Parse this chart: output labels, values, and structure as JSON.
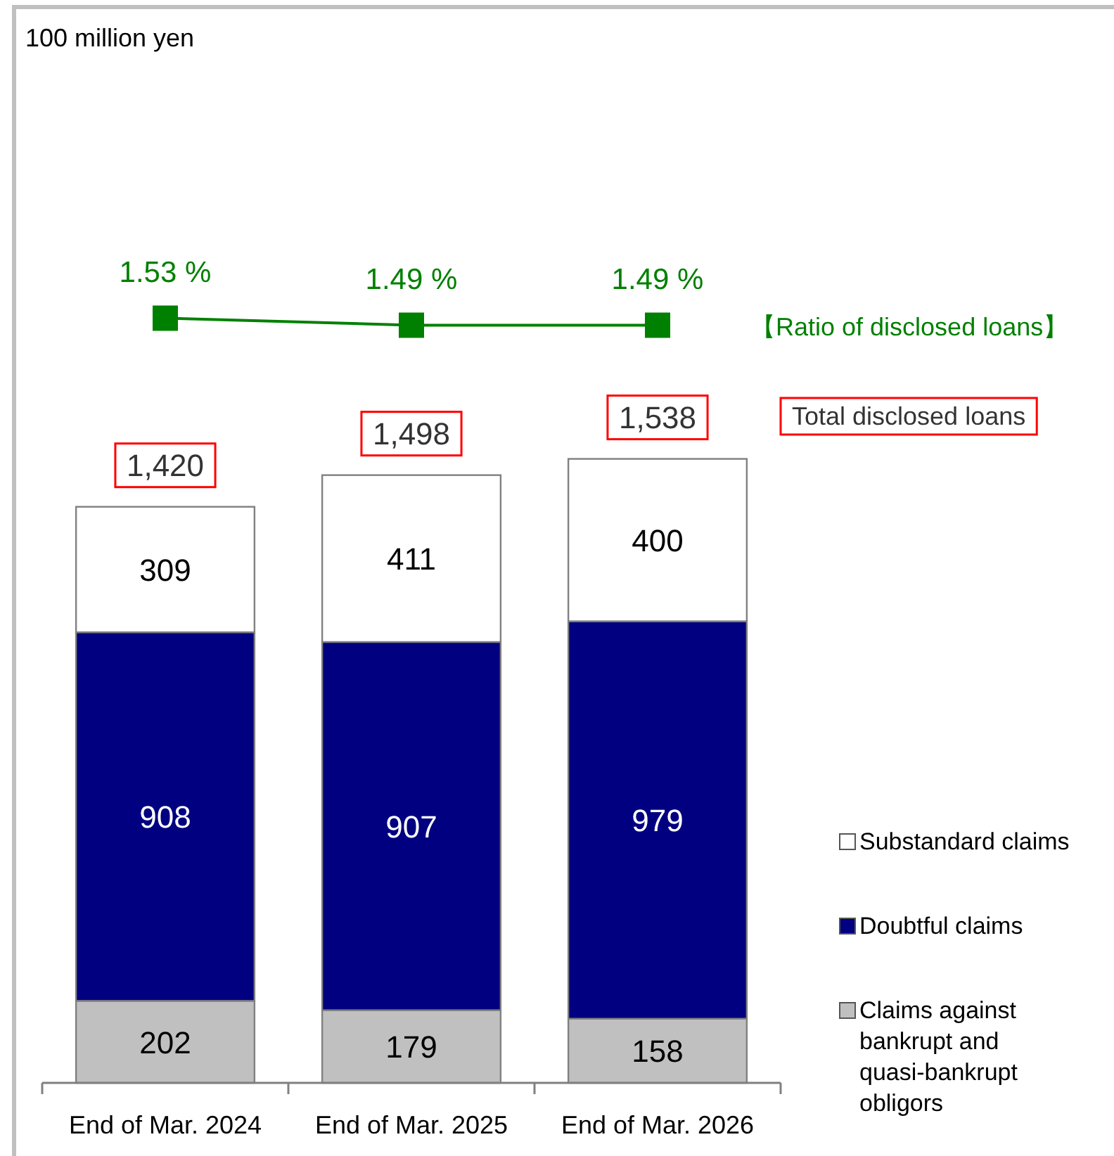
{
  "chart_data": {
    "type": "bar",
    "stacked": true,
    "ylabel": "100 million yen",
    "categories": [
      "End of Mar. 2024",
      "End of Mar. 2025",
      "End of Mar. 2026"
    ],
    "ylim": [
      0,
      2650
    ],
    "y2lim": [
      -2.82,
      3.3
    ],
    "tick_labels": "x",
    "legend": "bottom right",
    "totals": [
      "1,420",
      "1,498",
      "1,538"
    ],
    "annotations": [
      "Total disclosed loans"
    ],
    "series": [
      {
        "name": "Claims against bankrupt and quasi-bankrupt obligors",
        "color": "#c0c0c0",
        "values": [
          202,
          179,
          158
        ],
        "value_labels": [
          "202",
          "179",
          "158"
        ]
      },
      {
        "name": "Doubtful claims",
        "color": "#000080",
        "values": [
          908,
          907,
          979
        ],
        "value_labels": [
          "908",
          "907",
          "979"
        ]
      },
      {
        "name": "Substandard claims",
        "color": "#ffffff",
        "values": [
          309,
          411,
          400
        ],
        "value_labels": [
          "309",
          "411",
          "400"
        ]
      },
      {
        "name": "【Ratio of disclosed loans】",
        "type": "line",
        "axis": "y2",
        "color": "#008000",
        "marker": "square",
        "line_style": "solid",
        "values": [
          1.53,
          1.49,
          1.49
        ],
        "value_labels": [
          "1.53 %",
          "1.49 %",
          "1.49 %"
        ]
      }
    ]
  }
}
